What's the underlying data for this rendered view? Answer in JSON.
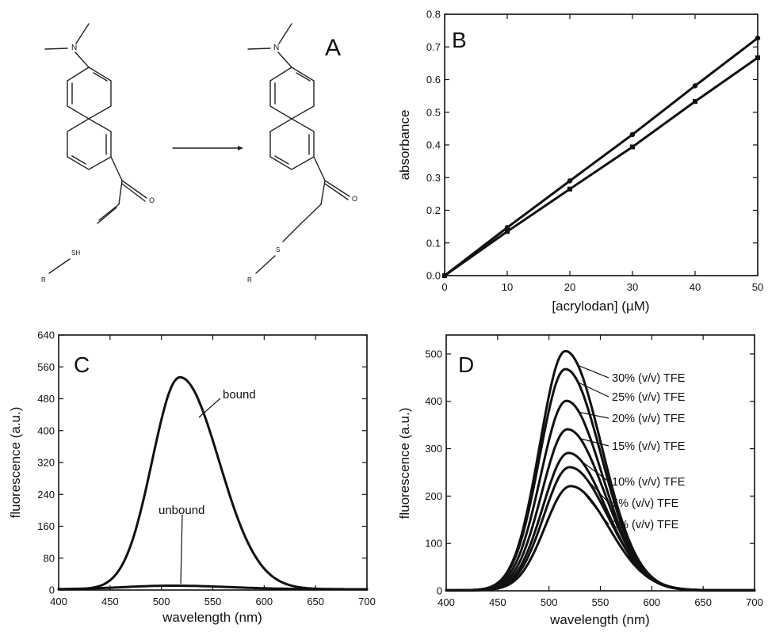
{
  "panel_letters": {
    "A": "A",
    "B": "B",
    "C": "C",
    "D": "D"
  },
  "scheme": {
    "reactant_labels": [
      "N",
      "O",
      "SH",
      "R"
    ],
    "product_labels": [
      "N",
      "O",
      "S",
      "R"
    ]
  },
  "chart_data": [
    {
      "id": "B",
      "type": "line",
      "xlabel": "[acrylodan] (µM)",
      "ylabel": "absorbance",
      "xlim": [
        0,
        50
      ],
      "ylim": [
        0,
        0.8
      ],
      "xticks": [
        0,
        10,
        20,
        30,
        40,
        50
      ],
      "yticks": [
        0.0,
        0.1,
        0.2,
        0.3,
        0.4,
        0.5,
        0.6,
        0.7,
        0.8
      ],
      "ytick_format": 1,
      "markers": true,
      "series": [
        {
          "x": [
            0,
            10,
            20,
            30,
            40,
            50
          ],
          "y": [
            0,
            0.147,
            0.29,
            0.432,
            0.581,
            0.727
          ]
        },
        {
          "x": [
            0,
            10,
            20,
            30,
            40,
            50
          ],
          "y": [
            0,
            0.135,
            0.265,
            0.394,
            0.533,
            0.667
          ]
        }
      ]
    },
    {
      "id": "C",
      "type": "line",
      "xlabel": "wavelength (nm)",
      "ylabel": "fluorescence (a.u.)",
      "xlim": [
        400,
        700
      ],
      "ylim": [
        0,
        640
      ],
      "xticks": [
        400,
        450,
        500,
        550,
        600,
        650,
        700
      ],
      "yticks": [
        0,
        80,
        160,
        240,
        320,
        400,
        480,
        560,
        640
      ],
      "ytick_format": 0,
      "series": [
        {
          "name": "bound",
          "peak_x": 518,
          "peak_y": 532,
          "sigma_left": 27,
          "sigma_right": 38
        },
        {
          "name": "unbound",
          "peak_x": 510,
          "peak_y": 9,
          "sigma_left": 45,
          "sigma_right": 55
        }
      ]
    },
    {
      "id": "D",
      "type": "line",
      "xlabel": "wavelength (nm)",
      "ylabel": "fluorescence (a.u.)",
      "xlim": [
        400,
        700
      ],
      "ylim": [
        0,
        540
      ],
      "xticks": [
        400,
        450,
        500,
        550,
        600,
        650,
        700
      ],
      "yticks": [
        0,
        100,
        200,
        300,
        400,
        500
      ],
      "ytick_format": 0,
      "series": [
        {
          "name": "30% (v/v) TFE",
          "peak_x": 516,
          "peak_y": 505,
          "sigma_left": 25,
          "sigma_right": 35
        },
        {
          "name": "25% (v/v) TFE",
          "peak_x": 516,
          "peak_y": 467,
          "sigma_left": 25,
          "sigma_right": 35
        },
        {
          "name": "20% (v/v) TFE",
          "peak_x": 517,
          "peak_y": 400,
          "sigma_left": 25,
          "sigma_right": 35
        },
        {
          "name": "15% (v/v) TFE",
          "peak_x": 518,
          "peak_y": 340,
          "sigma_left": 25,
          "sigma_right": 36
        },
        {
          "name": "10% (v/v) TFE",
          "peak_x": 519,
          "peak_y": 290,
          "sigma_left": 25,
          "sigma_right": 36
        },
        {
          "name": "5% (v/v) TFE",
          "peak_x": 520,
          "peak_y": 260,
          "sigma_left": 25,
          "sigma_right": 37
        },
        {
          "name": "0% (v/v) TFE",
          "peak_x": 521,
          "peak_y": 220,
          "sigma_left": 25,
          "sigma_right": 37
        }
      ]
    }
  ]
}
